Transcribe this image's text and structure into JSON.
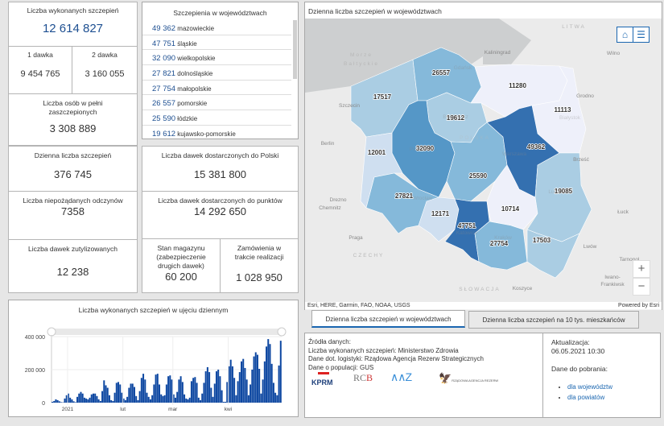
{
  "stats": {
    "total": {
      "label": "Liczba wykonanych szczepień",
      "value": "12 614 827"
    },
    "dose1": {
      "label": "1 dawka",
      "value": "9 454 765"
    },
    "dose2": {
      "label": "2 dawka",
      "value": "3 160 055"
    },
    "full": {
      "label": "Liczba osób w pełni zaszczepionych",
      "value": "3 308 889"
    },
    "daily": {
      "label": "Dzienna liczba szczepień",
      "value": "376 745"
    },
    "adverse": {
      "label": "Liczba niepożądanych odczynów",
      "value": "7358"
    },
    "utilized": {
      "label": "Liczba dawek zutylizowanych",
      "value": "12 238"
    },
    "delivered_pl": {
      "label": "Liczba dawek dostarczonych do Polski",
      "value": "15 381 800"
    },
    "delivered_points": {
      "label": "Liczba dawek dostarczonych do punktów",
      "value": "14 292 650"
    },
    "stock": {
      "label": "Stan magazynu (zabezpieczenie drugich dawek)",
      "value": "60 200"
    },
    "orders": {
      "label": "Zamówienia w trakcie realizacji",
      "value": "1 028 950"
    }
  },
  "regions_list": {
    "title": "Szczepienia w województwach",
    "items": [
      {
        "n": "49 362",
        "name": "mazowieckie"
      },
      {
        "n": "47 751",
        "name": "śląskie"
      },
      {
        "n": "32 090",
        "name": "wielkopolskie"
      },
      {
        "n": "27 821",
        "name": "dolnośląskie"
      },
      {
        "n": "27 754",
        "name": "małopolskie"
      },
      {
        "n": "26 557",
        "name": "pomorskie"
      },
      {
        "n": "25 590",
        "name": "łódzkie"
      },
      {
        "n": "19 612",
        "name": "kujawsko-pomorskie"
      }
    ]
  },
  "map": {
    "title": "Dzienna liczba szczepień w województwach",
    "attribution": "Esri, HERE, Garmin, FAO, NOAA, USGS",
    "powered": "Powered by Esri",
    "places": [
      "LITWA",
      "Morze",
      "Bałtyckie",
      "Kaliningrad",
      "Wilno",
      "Grodno",
      "Szczecin",
      "Berlin",
      "Gdańsk",
      "Bydgoszcz",
      "Białystok",
      "POLSKA",
      "Warszawa",
      "Brześć",
      "Łuck",
      "Lwów",
      "Drezno",
      "Chemnitz",
      "Praga",
      "CZECHY",
      "SŁOWACJA",
      "Koszyce",
      "Tarnopol",
      "Iwano-",
      "Frankiwsk",
      "Wrocław",
      "Katowice",
      "Kraków",
      "Lublin",
      "Poznań"
    ],
    "regions": [
      {
        "name": "zachodniopomorskie",
        "value": 17517
      },
      {
        "name": "pomorskie",
        "value": 26557
      },
      {
        "name": "warmińsko-mazurskie",
        "value": 11280
      },
      {
        "name": "podlaskie",
        "value": 11113
      },
      {
        "name": "kujawsko-pomorskie",
        "value": 19612
      },
      {
        "name": "wielkopolskie",
        "value": 32090
      },
      {
        "name": "lubuskie",
        "value": 12001
      },
      {
        "name": "dolnośląskie",
        "value": 27821
      },
      {
        "name": "opolskie",
        "value": 12171
      },
      {
        "name": "łódzkie",
        "value": 25590
      },
      {
        "name": "mazowieckie",
        "value": 49362
      },
      {
        "name": "śląskie",
        "value": 47751
      },
      {
        "name": "świętokrzyskie",
        "value": 10714
      },
      {
        "name": "małopolskie",
        "value": 27754
      },
      {
        "name": "lubelskie",
        "value": 19085
      },
      {
        "name": "podkarpackie",
        "value": 17503
      }
    ],
    "zoom_in": "+",
    "zoom_out": "−"
  },
  "tabs": [
    {
      "label": "Dzienna liczba szczepień w województwach",
      "active": true
    },
    {
      "label": "Dzienna liczba szczepień na 10 tys. mieszkańców",
      "active": false
    }
  ],
  "sources": {
    "title": "Źródła danych:",
    "lines": [
      "Liczba wykonanych szczepień: Ministerstwo Zdrowia",
      "Dane dot. logistyki: Rządowa Agencja Rezerw Strategicznych",
      "Dane o populacji: GUS"
    ],
    "logos": [
      "KPRM",
      "RCB",
      "Ministerstwo Zdrowia",
      "Rządowa Agencja Rezerw Strategicznych"
    ]
  },
  "update": {
    "label": "Aktualizacja:",
    "value": "06.05.2021 10:30",
    "download_label": "Dane do pobrania:",
    "links": [
      "dla województw",
      "dla powiatów"
    ]
  },
  "colors": {
    "accent": "#1d4f91",
    "bar": "#0d47a1",
    "dark": "#3470b0",
    "mid": "#5597c7",
    "light": "#85b9da",
    "lighter": "#aacde3",
    "pale": "#cfdff0",
    "palest": "#eef0fa"
  },
  "chart_data": {
    "type": "bar",
    "title": "Liczba wykonanych szczepień w ujęciu dziennym",
    "ylim": [
      0,
      400000
    ],
    "yticks": [
      {
        "v": 0,
        "label": "0"
      },
      {
        "v": 200000,
        "label": "200 000"
      },
      {
        "v": 400000,
        "label": "400 000"
      }
    ],
    "xticks": [
      {
        "i": 9,
        "label": "2021"
      },
      {
        "i": 40,
        "label": "lut"
      },
      {
        "i": 68,
        "label": "mar"
      },
      {
        "i": 99,
        "label": "kwi"
      }
    ],
    "values": [
      5000,
      10000,
      20000,
      15000,
      8000,
      3000,
      2000,
      25000,
      45000,
      55000,
      30000,
      20000,
      8000,
      3000,
      35000,
      55000,
      65000,
      55000,
      30000,
      25000,
      20000,
      30000,
      50000,
      55000,
      55000,
      40000,
      20000,
      10000,
      70000,
      135000,
      105000,
      90000,
      45000,
      15000,
      10000,
      60000,
      120000,
      125000,
      110000,
      60000,
      25000,
      15000,
      35000,
      90000,
      115000,
      115000,
      95000,
      40000,
      15000,
      70000,
      150000,
      175000,
      140000,
      60000,
      35000,
      20000,
      45000,
      110000,
      170000,
      175000,
      110000,
      50000,
      40000,
      45000,
      110000,
      160000,
      165000,
      140000,
      50000,
      30000,
      65000,
      140000,
      160000,
      125000,
      50000,
      25000,
      20000,
      30000,
      130000,
      150000,
      155000,
      120000,
      30000,
      15000,
      55000,
      120000,
      190000,
      215000,
      185000,
      90000,
      35000,
      115000,
      190000,
      200000,
      160000,
      75000,
      5000,
      5000,
      125000,
      220000,
      260000,
      220000,
      150000,
      45000,
      130000,
      185000,
      250000,
      265000,
      210000,
      140000,
      45000,
      110000,
      200000,
      280000,
      305000,
      290000,
      205000,
      55000,
      140000,
      250000,
      340000,
      385000,
      355000,
      235000,
      120000,
      60000,
      45000,
      225000,
      375000
    ]
  }
}
